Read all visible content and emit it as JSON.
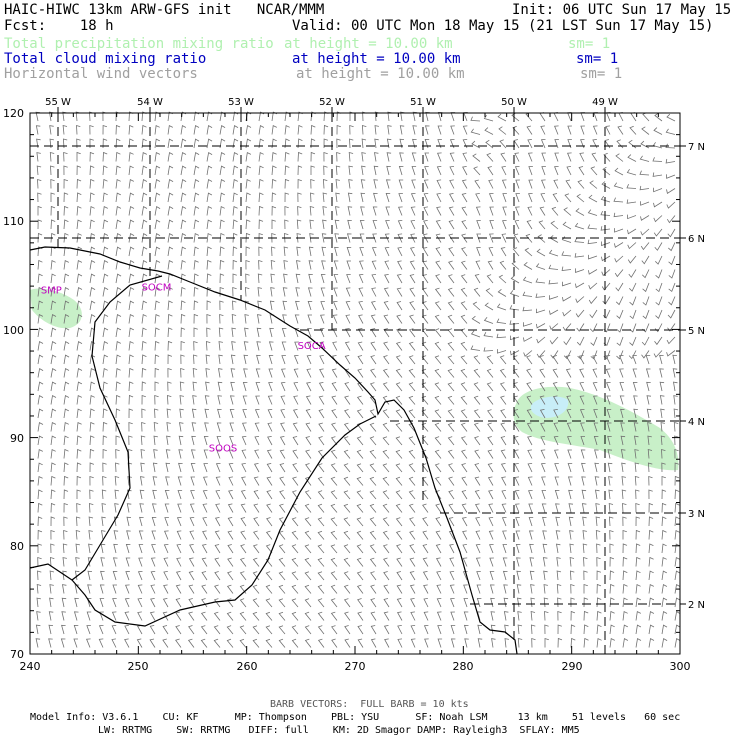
{
  "header": {
    "title": "HAIC-HIWC 13km ARW-GFS init   NCAR/MMM",
    "init": "Init: 06 UTC Sun 17 May 15",
    "fcst": "Fcst:    18 h",
    "valid": "Valid: 00 UTC Mon 18 May 15 (21 LST Sun 17 May 15)",
    "colors": {
      "precip": "#b0f0b0",
      "cloud": "#0000c0",
      "wind": "#a0a0a0"
    },
    "fields": [
      {
        "name": "Total precipitation mixing ratio",
        "height": "at height = 10.00 km",
        "sm": "sm= 1"
      },
      {
        "name": "Total cloud mixing ratio",
        "height": "at height = 10.00 km",
        "sm": "sm= 1"
      },
      {
        "name": "Horizontal wind vectors",
        "height": "at height = 10.00 km",
        "sm": "sm= 1"
      }
    ]
  },
  "map": {
    "x_axis": {
      "range": [
        240,
        300
      ],
      "ticks": [
        "240",
        "250",
        "260",
        "270",
        "280",
        "290",
        "300"
      ]
    },
    "y_axis": {
      "range": [
        70,
        120
      ],
      "ticks": [
        "70",
        "80",
        "90",
        "100",
        "110",
        "120"
      ]
    },
    "longitude_labels": [
      "55 W",
      "54 W",
      "53 W",
      "52 W",
      "51 W",
      "50 W",
      "49 W"
    ],
    "latitude_labels": [
      "2 N",
      "3 N",
      "4 N",
      "5 N",
      "6 N",
      "7 N"
    ],
    "stations": [
      {
        "id": "SMP",
        "x": 241,
        "y": 103.3
      },
      {
        "id": "SOCM",
        "x": 250.3,
        "y": 103.6
      },
      {
        "id": "SOCA",
        "x": 264.7,
        "y": 98.2
      },
      {
        "id": "SOOS",
        "x": 256.5,
        "y": 88.7
      }
    ],
    "line_color": "#000000",
    "label_color": "#c000c0",
    "barb_color": "#707070"
  },
  "footer": {
    "barb_note": "BARB VECTORS:  FULL BARB = 10 kts",
    "line1": "Model Info: V3.6.1    CU: KF      MP: Thompson    PBL: YSU      SF: Noah LSM     13 km    51 levels   60 sec",
    "line2": "LW: RRTMG    SW: RRTMG   DIFF: full    KM: 2D Smagor DAMP: Rayleigh3  SFLAY: MM5"
  }
}
